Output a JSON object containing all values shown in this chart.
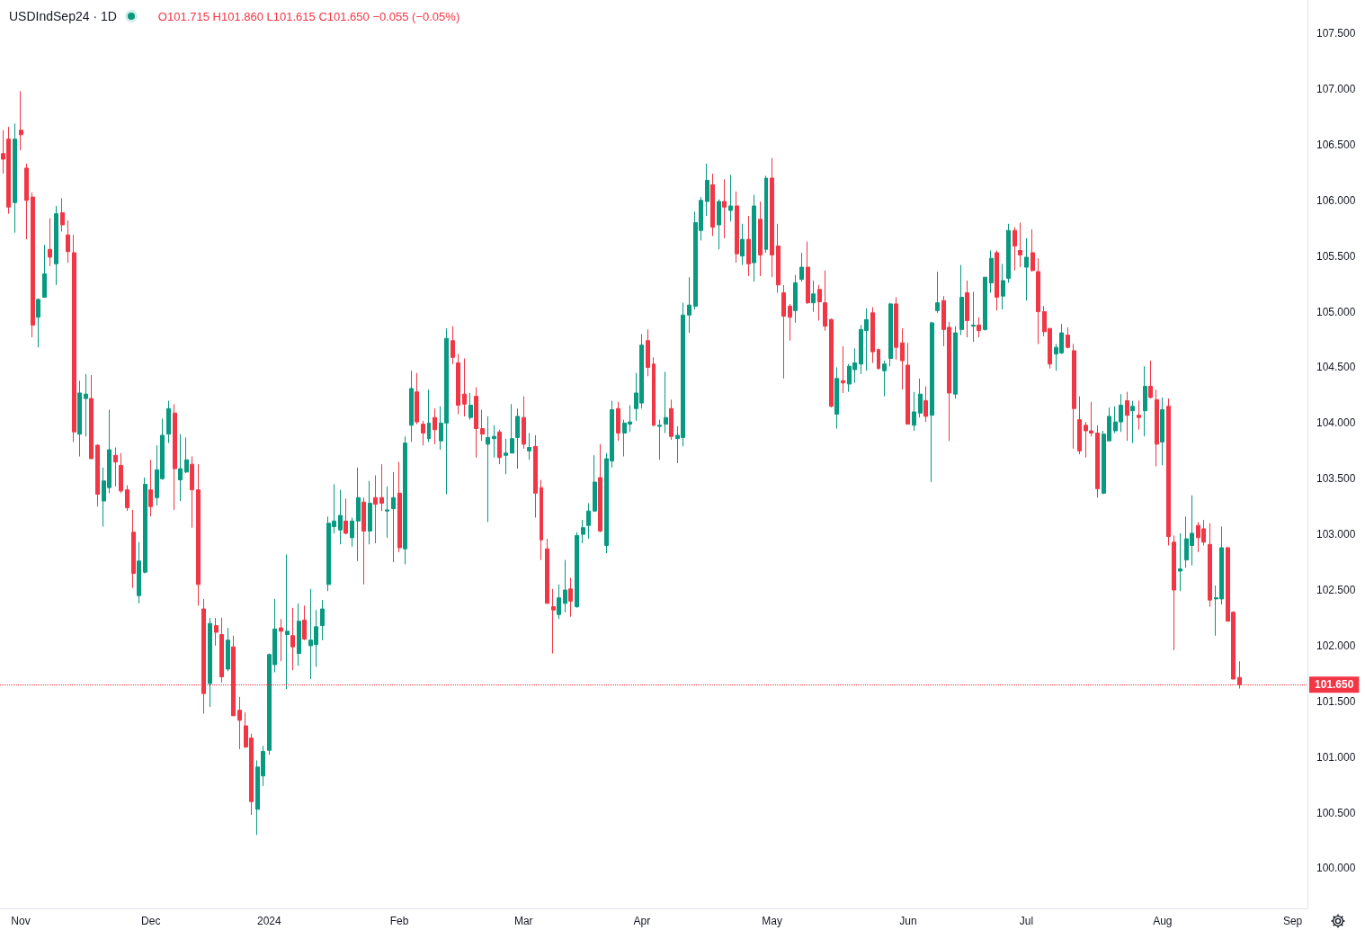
{
  "chart_data": {
    "type": "candlestick",
    "title": "USDIndSep24 · 1D",
    "annotations": [
      "O101.715 H101.860 L101.615 C101.650 −0.055 (−0.05%)"
    ],
    "categories": [
      null,
      null,
      null,
      "Nov",
      null,
      null,
      null,
      null,
      null,
      null,
      null,
      null,
      null,
      null,
      null,
      null,
      null,
      null,
      null,
      null,
      null,
      null,
      null,
      null,
      null,
      "Dec",
      null,
      null,
      null,
      null,
      null,
      null,
      null,
      null,
      null,
      null,
      null,
      null,
      null,
      null,
      null,
      null,
      null,
      null,
      null,
      "2024",
      null,
      null,
      null,
      null,
      null,
      null,
      null,
      null,
      null,
      null,
      null,
      null,
      null,
      null,
      null,
      null,
      null,
      null,
      null,
      null,
      null,
      "Feb",
      null,
      null,
      null,
      null,
      null,
      null,
      null,
      null,
      null,
      null,
      null,
      null,
      null,
      null,
      null,
      null,
      null,
      null,
      null,
      null,
      "Mar",
      null,
      null,
      null,
      null,
      null,
      null,
      null,
      null,
      null,
      null,
      null,
      null,
      null,
      null,
      null,
      null,
      null,
      null,
      null,
      "Apr",
      null,
      null,
      null,
      null,
      null,
      null,
      null,
      null,
      null,
      null,
      null,
      null,
      null,
      null,
      null,
      null,
      null,
      null,
      null,
      null,
      null,
      "May",
      null,
      null,
      null,
      null,
      null,
      null,
      null,
      null,
      null,
      null,
      null,
      null,
      null,
      null,
      null,
      null,
      null,
      null,
      null,
      null,
      null,
      null,
      "Jun",
      null,
      null,
      null,
      null,
      null,
      null,
      null,
      null,
      null,
      null,
      null,
      null,
      null,
      null,
      null,
      null,
      null,
      null,
      null,
      "Jul",
      null,
      null,
      null,
      null,
      null,
      null,
      null,
      null,
      null,
      null,
      null,
      null,
      null,
      null,
      null,
      null,
      null,
      null,
      null,
      null,
      null,
      null,
      "Aug",
      null,
      null,
      null,
      null,
      null,
      null,
      null,
      null,
      null,
      null,
      null,
      null,
      null,
      null,
      null,
      null,
      null,
      null,
      null,
      null,
      null,
      "Sep",
      null,
      null
    ],
    "ohlc": [
      [
        106.42,
        106.63,
        106.24,
        106.37
      ],
      [
        106.55,
        106.66,
        105.88,
        105.94
      ],
      [
        105.98,
        106.69,
        105.71,
        106.55
      ],
      [
        106.63,
        106.98,
        106.45,
        106.59
      ],
      [
        106.29,
        106.33,
        105.65,
        106.0
      ],
      [
        106.03,
        106.07,
        104.77,
        104.88
      ],
      [
        104.95,
        105.12,
        104.68,
        105.11
      ],
      [
        105.13,
        105.6,
        105.13,
        105.34
      ],
      [
        105.56,
        105.84,
        105.41,
        105.49
      ],
      [
        105.43,
        105.95,
        105.24,
        105.88
      ],
      [
        105.89,
        106.02,
        105.72,
        105.78
      ],
      [
        105.69,
        105.82,
        105.44,
        105.54
      ],
      [
        105.53,
        105.69,
        103.83,
        103.92
      ],
      [
        103.9,
        104.38,
        103.7,
        104.27
      ],
      [
        104.22,
        104.44,
        103.88,
        104.26
      ],
      [
        104.22,
        104.43,
        103.68,
        103.68
      ],
      [
        103.8,
        103.81,
        103.25,
        103.36
      ],
      [
        103.3,
        103.6,
        103.07,
        103.48
      ],
      [
        103.42,
        104.12,
        103.37,
        103.76
      ],
      [
        103.71,
        103.78,
        103.43,
        103.65
      ],
      [
        103.62,
        103.73,
        103.37,
        103.39
      ],
      [
        103.4,
        103.44,
        103.21,
        103.24
      ],
      [
        103.02,
        103.22,
        102.52,
        102.65
      ],
      [
        102.45,
        102.93,
        102.38,
        102.76
      ],
      [
        102.66,
        103.51,
        102.65,
        103.45
      ],
      [
        103.4,
        103.67,
        103.16,
        103.25
      ],
      [
        103.33,
        103.8,
        103.26,
        103.58
      ],
      [
        103.5,
        104.04,
        103.49,
        103.89
      ],
      [
        103.9,
        104.2,
        103.82,
        104.13
      ],
      [
        104.09,
        104.17,
        103.22,
        103.59
      ],
      [
        103.49,
        103.9,
        103.3,
        103.59
      ],
      [
        103.56,
        103.87,
        103.55,
        103.67
      ],
      [
        103.63,
        103.7,
        103.06,
        103.4
      ],
      [
        103.4,
        103.63,
        102.36,
        102.55
      ],
      [
        102.33,
        102.42,
        101.39,
        101.57
      ],
      [
        101.66,
        102.25,
        101.45,
        102.2
      ],
      [
        102.18,
        102.25,
        102.0,
        102.12
      ],
      [
        102.1,
        102.25,
        101.67,
        101.72
      ],
      [
        101.79,
        102.16,
        101.77,
        102.05
      ],
      [
        101.99,
        102.09,
        101.37,
        101.37
      ],
      [
        101.42,
        101.54,
        101.07,
        101.33
      ],
      [
        101.28,
        101.4,
        101.08,
        101.09
      ],
      [
        101.17,
        101.21,
        100.48,
        100.6
      ],
      [
        100.53,
        100.97,
        100.3,
        100.91
      ],
      [
        100.83,
        101.1,
        100.74,
        101.05
      ],
      [
        101.06,
        101.93,
        101.02,
        101.92
      ],
      [
        101.83,
        102.42,
        101.76,
        102.15
      ],
      [
        102.16,
        102.24,
        101.86,
        102.13
      ],
      [
        102.1,
        102.82,
        101.61,
        102.13
      ],
      [
        102.09,
        102.34,
        101.78,
        101.99
      ],
      [
        101.93,
        102.38,
        101.82,
        102.22
      ],
      [
        102.23,
        102.36,
        102.05,
        102.06
      ],
      [
        102.0,
        102.51,
        101.7,
        102.05
      ],
      [
        102.01,
        102.32,
        101.81,
        102.17
      ],
      [
        102.18,
        102.41,
        102.05,
        102.33
      ],
      [
        102.55,
        103.16,
        102.49,
        103.1
      ],
      [
        103.07,
        103.45,
        103.01,
        103.12
      ],
      [
        103.04,
        103.4,
        102.91,
        103.17
      ],
      [
        103.12,
        103.32,
        103.0,
        103.01
      ],
      [
        102.97,
        103.15,
        102.89,
        103.12
      ],
      [
        103.12,
        103.6,
        102.76,
        103.33
      ],
      [
        103.29,
        103.33,
        102.55,
        103.03
      ],
      [
        103.03,
        103.48,
        102.91,
        103.28
      ],
      [
        103.33,
        103.53,
        102.92,
        103.27
      ],
      [
        103.33,
        103.63,
        103.21,
        103.28
      ],
      [
        103.21,
        103.43,
        102.97,
        103.22
      ],
      [
        103.23,
        103.56,
        102.75,
        103.33
      ],
      [
        103.37,
        103.65,
        102.84,
        102.88
      ],
      [
        102.87,
        103.88,
        102.73,
        103.82
      ],
      [
        103.98,
        104.47,
        103.83,
        104.31
      ],
      [
        104.28,
        104.45,
        103.99,
        104.01
      ],
      [
        103.99,
        104.02,
        103.8,
        103.91
      ],
      [
        103.86,
        104.3,
        103.83,
        104.0
      ],
      [
        104.05,
        104.13,
        103.81,
        103.94
      ],
      [
        103.84,
        104.15,
        103.76,
        104.0
      ],
      [
        104.0,
        104.85,
        103.36,
        104.76
      ],
      [
        104.74,
        104.87,
        104.53,
        104.59
      ],
      [
        104.54,
        104.62,
        104.08,
        104.16
      ],
      [
        104.26,
        104.58,
        104.06,
        104.17
      ],
      [
        104.05,
        104.27,
        104.03,
        104.16
      ],
      [
        104.24,
        104.32,
        103.69,
        103.95
      ],
      [
        103.95,
        104.12,
        103.84,
        103.9
      ],
      [
        103.81,
        104.06,
        103.11,
        103.87
      ],
      [
        103.86,
        103.98,
        103.69,
        103.88
      ],
      [
        103.92,
        103.94,
        103.63,
        103.69
      ],
      [
        103.71,
        103.86,
        103.54,
        103.73
      ],
      [
        103.73,
        104.17,
        103.73,
        103.86
      ],
      [
        103.87,
        104.13,
        103.59,
        104.06
      ],
      [
        104.05,
        104.24,
        103.77,
        103.81
      ],
      [
        103.75,
        103.91,
        103.67,
        103.78
      ],
      [
        103.79,
        103.89,
        103.15,
        103.37
      ],
      [
        103.42,
        103.49,
        102.77,
        102.95
      ],
      [
        102.87,
        102.96,
        102.38,
        102.38
      ],
      [
        102.35,
        102.51,
        101.93,
        102.32
      ],
      [
        102.28,
        102.55,
        102.24,
        102.43
      ],
      [
        102.38,
        102.77,
        102.3,
        102.5
      ],
      [
        102.51,
        102.61,
        102.26,
        102.4
      ],
      [
        102.35,
        103.02,
        102.34,
        102.99
      ],
      [
        103.0,
        103.13,
        102.92,
        103.06
      ],
      [
        103.08,
        103.28,
        102.96,
        103.21
      ],
      [
        103.21,
        103.71,
        103.2,
        103.47
      ],
      [
        103.51,
        103.81,
        103.02,
        103.03
      ],
      [
        102.9,
        103.73,
        102.83,
        103.68
      ],
      [
        103.66,
        104.2,
        103.6,
        104.12
      ],
      [
        104.13,
        104.19,
        103.84,
        103.91
      ],
      [
        103.91,
        104.03,
        103.7,
        104.0
      ],
      [
        103.99,
        104.16,
        103.92,
        104.01
      ],
      [
        104.13,
        104.45,
        104.02,
        104.27
      ],
      [
        104.18,
        104.8,
        104.13,
        104.7
      ],
      [
        104.74,
        104.84,
        104.42,
        104.5
      ],
      [
        104.53,
        104.59,
        103.97,
        103.98
      ],
      [
        103.97,
        104.03,
        103.67,
        103.98
      ],
      [
        103.99,
        104.46,
        103.91,
        104.05
      ],
      [
        104.13,
        104.21,
        103.85,
        103.88
      ],
      [
        103.86,
        103.97,
        103.64,
        103.89
      ],
      [
        103.87,
        105.08,
        103.79,
        104.97
      ],
      [
        104.97,
        105.31,
        104.81,
        105.06
      ],
      [
        105.05,
        105.9,
        105.02,
        105.8
      ],
      [
        105.73,
        106.03,
        105.64,
        106.0
      ],
      [
        105.99,
        106.33,
        105.86,
        106.18
      ],
      [
        106.14,
        106.24,
        105.68,
        105.76
      ],
      [
        105.78,
        106.01,
        105.56,
        105.99
      ],
      [
        105.99,
        106.19,
        105.66,
        105.94
      ],
      [
        105.91,
        106.23,
        105.81,
        105.95
      ],
      [
        105.95,
        106.08,
        105.44,
        105.52
      ],
      [
        105.5,
        105.79,
        105.42,
        105.65
      ],
      [
        105.65,
        105.86,
        105.32,
        105.43
      ],
      [
        105.44,
        106.05,
        105.27,
        105.95
      ],
      [
        105.83,
        105.99,
        105.32,
        105.51
      ],
      [
        105.56,
        106.22,
        105.53,
        106.2
      ],
      [
        106.2,
        106.38,
        105.31,
        105.51
      ],
      [
        105.59,
        105.79,
        105.17,
        105.24
      ],
      [
        105.17,
        105.24,
        104.4,
        104.96
      ],
      [
        105.05,
        105.07,
        104.74,
        104.95
      ],
      [
        105.01,
        105.33,
        104.9,
        105.26
      ],
      [
        105.29,
        105.53,
        105.27,
        105.4
      ],
      [
        105.4,
        105.63,
        105.07,
        105.08
      ],
      [
        105.08,
        105.28,
        105.0,
        105.16
      ],
      [
        105.2,
        105.24,
        104.92,
        105.09
      ],
      [
        105.08,
        105.37,
        104.83,
        104.87
      ],
      [
        104.93,
        104.94,
        104.14,
        104.15
      ],
      [
        104.08,
        104.5,
        103.95,
        104.4
      ],
      [
        104.38,
        104.69,
        104.27,
        104.36
      ],
      [
        104.35,
        104.53,
        104.28,
        104.51
      ],
      [
        104.48,
        104.67,
        104.36,
        104.54
      ],
      [
        104.53,
        104.88,
        104.44,
        104.84
      ],
      [
        104.83,
        105.03,
        104.47,
        104.93
      ],
      [
        104.99,
        105.04,
        104.54,
        104.64
      ],
      [
        104.66,
        104.67,
        104.48,
        104.49
      ],
      [
        104.47,
        104.56,
        104.24,
        104.53
      ],
      [
        104.58,
        105.08,
        104.51,
        105.07
      ],
      [
        105.07,
        105.13,
        104.57,
        104.68
      ],
      [
        104.72,
        104.85,
        104.3,
        104.56
      ],
      [
        104.52,
        104.72,
        103.99,
        103.99
      ],
      [
        103.98,
        104.28,
        103.93,
        104.1
      ],
      [
        104.09,
        104.4,
        104.05,
        104.26
      ],
      [
        104.2,
        104.33,
        104.01,
        104.06
      ],
      [
        104.07,
        104.91,
        103.47,
        104.9
      ],
      [
        105.01,
        105.36,
        104.99,
        105.08
      ],
      [
        105.1,
        105.14,
        104.69,
        104.84
      ],
      [
        104.86,
        104.91,
        103.84,
        104.27
      ],
      [
        104.26,
        104.87,
        104.22,
        104.81
      ],
      [
        104.84,
        105.42,
        104.79,
        105.13
      ],
      [
        105.17,
        105.28,
        104.77,
        104.92
      ],
      [
        104.87,
        105.18,
        104.73,
        104.88
      ],
      [
        104.88,
        104.95,
        104.77,
        104.83
      ],
      [
        104.84,
        105.31,
        104.83,
        105.31
      ],
      [
        105.26,
        105.55,
        105.17,
        105.48
      ],
      [
        105.53,
        105.55,
        105.01,
        105.13
      ],
      [
        105.14,
        105.43,
        105.02,
        105.28
      ],
      [
        105.3,
        105.79,
        105.26,
        105.73
      ],
      [
        105.73,
        105.76,
        105.37,
        105.59
      ],
      [
        105.55,
        105.8,
        105.4,
        105.51
      ],
      [
        105.4,
        105.66,
        105.1,
        105.49
      ],
      [
        105.53,
        105.74,
        105.36,
        105.37
      ],
      [
        105.36,
        105.48,
        104.71,
        105.0
      ],
      [
        105.0,
        105.05,
        104.78,
        104.82
      ],
      [
        104.85,
        104.85,
        104.49,
        104.53
      ],
      [
        104.62,
        104.71,
        104.47,
        104.68
      ],
      [
        104.63,
        104.89,
        104.62,
        104.81
      ],
      [
        104.79,
        104.86,
        104.67,
        104.68
      ],
      [
        104.65,
        104.71,
        103.77,
        104.13
      ],
      [
        104.03,
        104.24,
        103.72,
        103.75
      ],
      [
        103.98,
        104.01,
        103.69,
        103.93
      ],
      [
        103.93,
        104.19,
        103.88,
        103.91
      ],
      [
        103.91,
        103.98,
        103.33,
        103.41
      ],
      [
        103.37,
        103.93,
        103.36,
        103.9
      ],
      [
        103.84,
        104.14,
        103.84,
        104.06
      ],
      [
        103.93,
        104.15,
        103.91,
        104.01
      ],
      [
        104.01,
        104.26,
        103.92,
        104.16
      ],
      [
        104.2,
        104.28,
        103.84,
        104.07
      ],
      [
        104.11,
        104.2,
        103.82,
        104.15
      ],
      [
        104.07,
        104.2,
        103.94,
        104.05
      ],
      [
        104.11,
        104.51,
        103.88,
        104.33
      ],
      [
        104.33,
        104.56,
        104.22,
        104.23
      ],
      [
        104.21,
        104.3,
        103.61,
        103.81
      ],
      [
        103.83,
        104.23,
        103.62,
        104.12
      ],
      [
        104.15,
        104.22,
        102.9,
        102.98
      ],
      [
        102.93,
        102.99,
        101.96,
        102.5
      ],
      [
        102.67,
        103.01,
        102.49,
        102.69
      ],
      [
        102.77,
        103.16,
        102.7,
        102.96
      ],
      [
        102.9,
        103.35,
        102.72,
        103.01
      ],
      [
        103.08,
        103.11,
        102.84,
        102.97
      ],
      [
        103.05,
        103.13,
        102.9,
        102.93
      ],
      [
        102.91,
        103.1,
        102.35,
        102.41
      ],
      [
        102.42,
        102.54,
        102.09,
        102.43
      ],
      [
        102.42,
        103.07,
        102.37,
        102.88
      ],
      [
        102.88,
        102.89,
        102.22,
        102.22
      ],
      [
        102.3,
        102.31,
        101.7,
        101.7
      ],
      [
        101.715,
        101.86,
        101.615,
        101.65
      ],
      null,
      null,
      null,
      null,
      null,
      null,
      null,
      null,
      null,
      null,
      null
    ],
    "colors": [
      "#f23645",
      "#f23645",
      "#089981",
      "#f23645",
      "#f23645",
      "#f23645",
      "#089981",
      "#089981",
      "#f23645",
      "#089981",
      "#f23645",
      "#f23645",
      "#f23645",
      "#089981",
      "#089981",
      "#f23645",
      "#f23645",
      "#089981",
      "#089981",
      "#f23645",
      "#f23645",
      "#f23645",
      "#f23645",
      "#089981",
      "#089981",
      "#f23645",
      "#089981",
      "#089981",
      "#089981",
      "#f23645",
      "#089981",
      "#089981",
      "#f23645",
      "#f23645",
      "#f23645",
      "#089981",
      "#f23645",
      "#f23645",
      "#089981",
      "#f23645",
      "#f23645",
      "#f23645",
      "#f23645",
      "#089981",
      "#089981",
      "#089981",
      "#089981",
      "#f23645",
      "#089981",
      "#f23645",
      "#089981",
      "#f23645",
      "#089981",
      "#089981",
      "#089981",
      "#089981",
      "#089981",
      "#089981",
      "#f23645",
      "#089981",
      "#089981",
      "#f23645",
      "#089981",
      "#f23645",
      "#f23645",
      "#089981",
      "#089981",
      "#f23645",
      "#089981",
      "#089981",
      "#f23645",
      "#f23645",
      "#089981",
      "#f23645",
      "#089981",
      "#089981",
      "#f23645",
      "#f23645",
      "#f23645",
      "#089981",
      "#f23645",
      "#f23645",
      "#089981",
      "#089981",
      "#f23645",
      "#089981",
      "#089981",
      "#089981",
      "#f23645",
      "#089981",
      "#f23645",
      "#f23645",
      "#f23645",
      "#f23645",
      "#089981",
      "#089981",
      "#f23645",
      "#089981",
      "#089981",
      "#089981",
      "#089981",
      "#f23645",
      "#089981",
      "#089981",
      "#f23645",
      "#089981",
      "#089981",
      "#089981",
      "#089981",
      "#f23645",
      "#f23645",
      "#089981",
      "#089981",
      "#f23645",
      "#089981",
      "#089981",
      "#089981",
      "#089981",
      "#089981",
      "#089981",
      "#f23645",
      "#089981",
      "#f23645",
      "#089981",
      "#f23645",
      "#089981",
      "#f23645",
      "#089981",
      "#f23645",
      "#089981",
      "#f23645",
      "#f23645",
      "#f23645",
      "#f23645",
      "#089981",
      "#089981",
      "#f23645",
      "#089981",
      "#f23645",
      "#f23645",
      "#f23645",
      "#089981",
      "#f23645",
      "#089981",
      "#089981",
      "#089981",
      "#089981",
      "#f23645",
      "#f23645",
      "#089981",
      "#089981",
      "#f23645",
      "#f23645",
      "#f23645",
      "#089981",
      "#089981",
      "#f23645",
      "#089981",
      "#089981",
      "#f23645",
      "#f23645",
      "#089981",
      "#089981",
      "#f23645",
      "#089981",
      "#f23645",
      "#089981",
      "#089981",
      "#f23645",
      "#089981",
      "#089981",
      "#f23645",
      "#f23645",
      "#089981",
      "#f23645",
      "#f23645",
      "#f23645",
      "#f23645",
      "#089981",
      "#089981",
      "#f23645",
      "#f23645",
      "#f23645",
      "#f23645",
      "#f23645",
      "#f23645",
      "#089981",
      "#089981",
      "#089981",
      "#089981",
      "#f23645",
      "#089981",
      "#f23645",
      "#089981",
      "#f23645",
      "#f23645",
      "#089981",
      "#f23645",
      "#f23645",
      "#089981",
      "#089981",
      "#089981",
      "#f23645",
      "#f23645",
      "#f23645",
      "#089981",
      "#089981",
      "#f23645",
      "#f23645",
      "#f23645",
      null,
      null,
      null,
      null,
      null,
      null,
      null,
      null,
      null,
      null,
      null
    ],
    "ylim": [
      99.64,
      107.8
    ],
    "yticks": [
      {
        "value": 100,
        "label": "100.000"
      },
      {
        "value": 100.5,
        "label": "100.500"
      },
      {
        "value": 101,
        "label": "101.000"
      },
      {
        "value": 101.5,
        "label": "101.500"
      },
      {
        "value": 102,
        "label": "102.000"
      },
      {
        "value": 102.5,
        "label": "102.500"
      },
      {
        "value": 103,
        "label": "103.000"
      },
      {
        "value": 103.5,
        "label": "103.500"
      },
      {
        "value": 104,
        "label": "104.000"
      },
      {
        "value": 104.5,
        "label": "104.500"
      },
      {
        "value": 105,
        "label": "105.000"
      },
      {
        "value": 105.5,
        "label": "105.500"
      },
      {
        "value": 106,
        "label": "106.000"
      },
      {
        "value": 106.5,
        "label": "106.500"
      },
      {
        "value": 107,
        "label": "107.000"
      },
      {
        "value": 107.5,
        "label": "107.500"
      }
    ],
    "ref_lines": [
      {
        "axis": "y",
        "value": 101.65,
        "label": "101.650",
        "color": "#f23645",
        "line_style": "dotted"
      }
    ]
  }
}
